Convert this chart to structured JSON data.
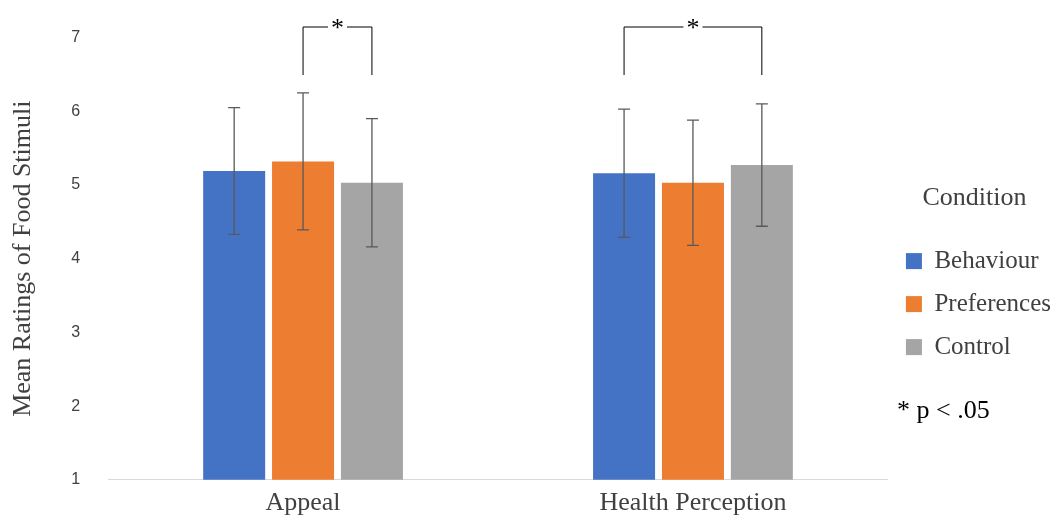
{
  "chart_data": {
    "type": "bar",
    "ylabel": "Mean Ratings of Food Stimuli",
    "legend_title": "Condition",
    "legend": "right",
    "categories": [
      "Appeal",
      "Health Perception"
    ],
    "series": [
      {
        "name": "Behaviour",
        "color": "#4472c4",
        "values": [
          5.19,
          5.16
        ],
        "errors": [
          0.86,
          0.87
        ]
      },
      {
        "name": "Preferences",
        "color": "#ed7d31",
        "values": [
          5.32,
          5.03
        ],
        "errors": [
          0.93,
          0.85
        ]
      },
      {
        "name": "Control",
        "color": "#a5a5a5",
        "values": [
          5.03,
          5.27
        ],
        "errors": [
          0.87,
          0.83
        ]
      }
    ],
    "ylim": [
      1,
      7
    ],
    "yticks": [
      1,
      2,
      3,
      4,
      5,
      6,
      7
    ],
    "grid": false,
    "annotations": [
      "*",
      "*",
      "* p < .05"
    ]
  }
}
